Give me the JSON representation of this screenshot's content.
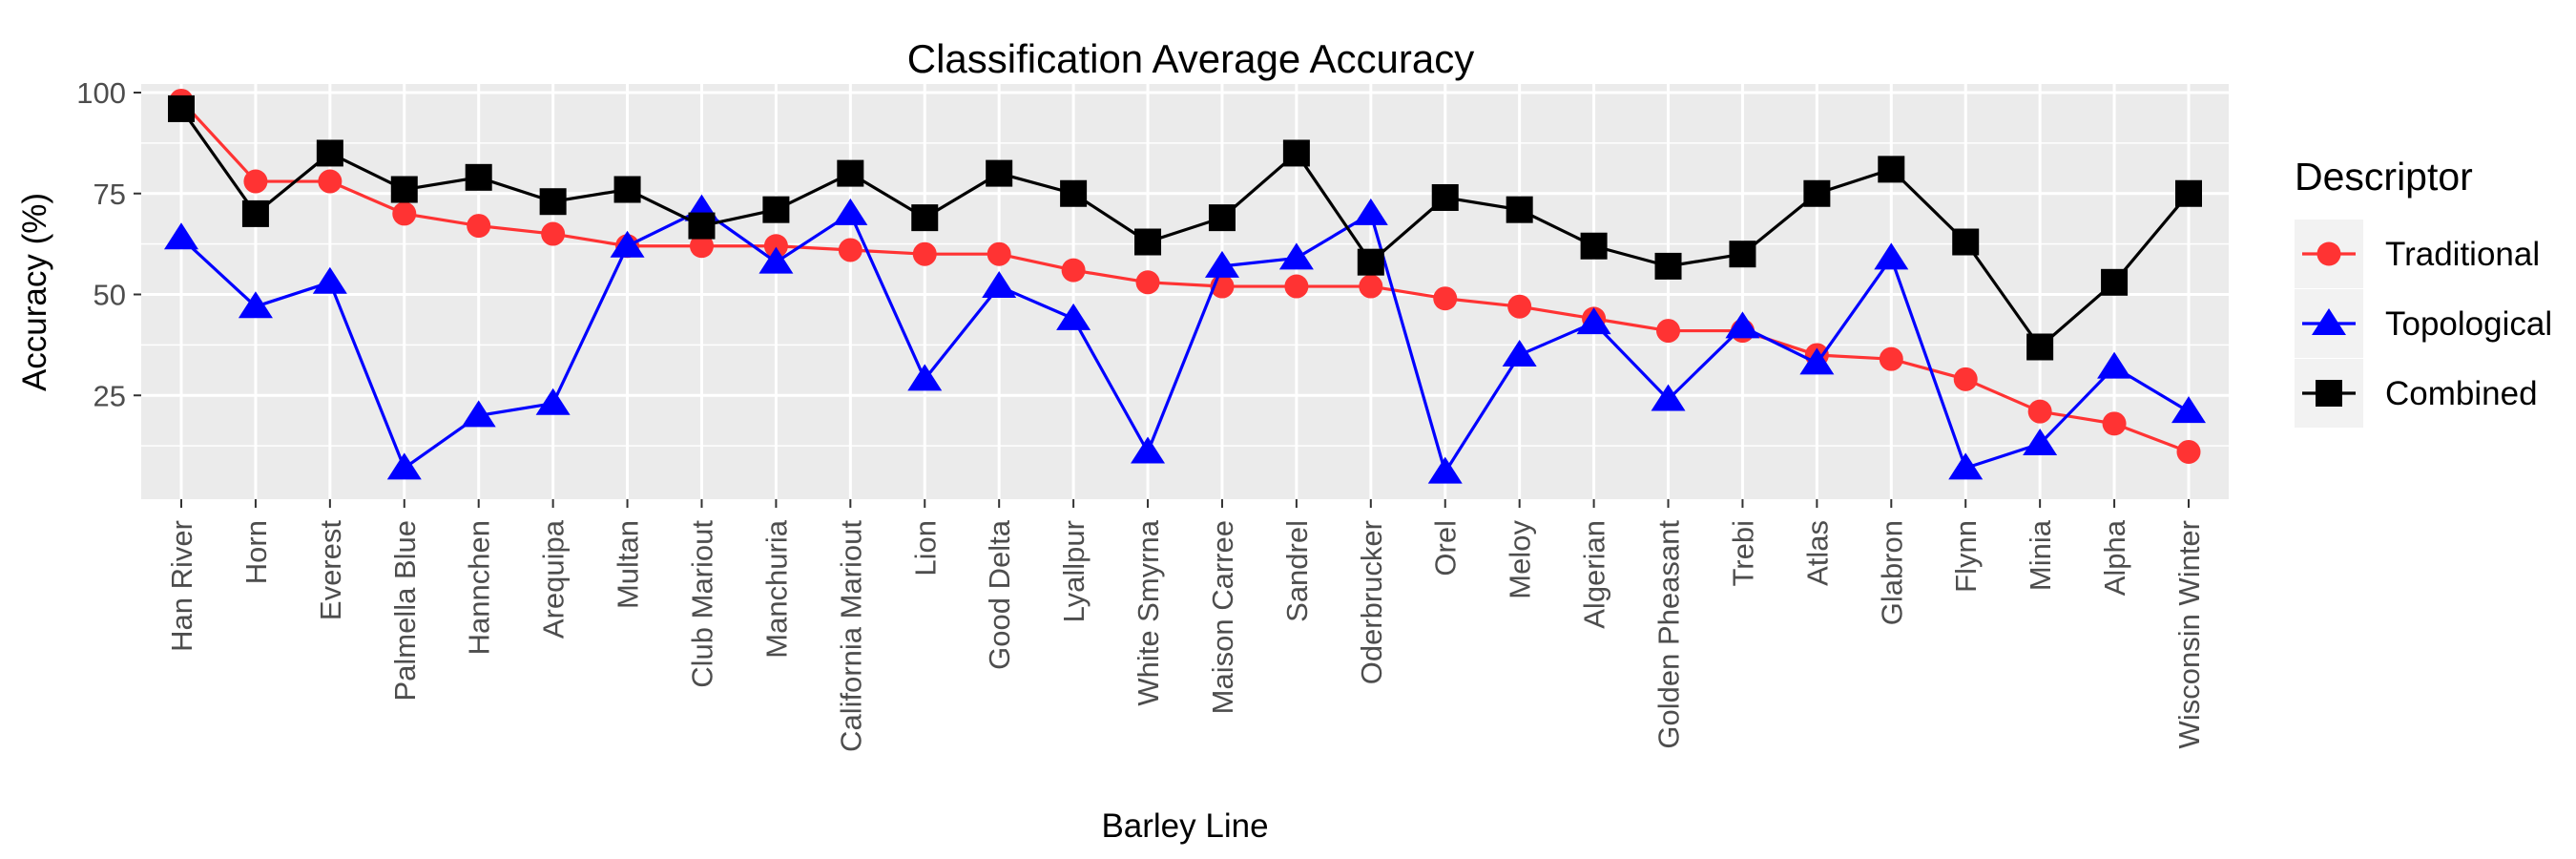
{
  "chart_data": {
    "type": "line",
    "title": "Classification Average Accuracy",
    "xlabel": "Barley Line",
    "ylabel": "Accuracy (%)",
    "ylim": [
      0,
      100
    ],
    "yticks": [
      25,
      50,
      75,
      100
    ],
    "grid": true,
    "legend_position": "right",
    "legend_title": "Descriptor",
    "categories": [
      "Han River",
      "Horn",
      "Everest",
      "Palmella Blue",
      "Hannchen",
      "Arequipa",
      "Multan",
      "Club Mariout",
      "Manchuria",
      "California Mariout",
      "Lion",
      "Good Delta",
      "Lyallpur",
      "White Smyrna",
      "Maison Carree",
      "Sandrel",
      "Oderbrucker",
      "Orel",
      "Meloy",
      "Algerian",
      "Golden Pheasant",
      "Trebi",
      "Atlas",
      "Glabron",
      "Flynn",
      "Minia",
      "Alpha",
      "Wisconsin Winter"
    ],
    "series": [
      {
        "name": "Traditional",
        "color": "#ff3333",
        "marker": "circle",
        "values": [
          98,
          78,
          78,
          70,
          67,
          65,
          62,
          62,
          62,
          61,
          60,
          60,
          56,
          53,
          52,
          52,
          52,
          49,
          47,
          44,
          41,
          41,
          35,
          34,
          29,
          21,
          18,
          11
        ]
      },
      {
        "name": "Topological",
        "color": "#0000ff",
        "marker": "triangle",
        "values": [
          64,
          47,
          53,
          7,
          20,
          23,
          62,
          71,
          58,
          70,
          29,
          52,
          44,
          11,
          57,
          59,
          70,
          6,
          35,
          43,
          24,
          42,
          33,
          59,
          7,
          13,
          32,
          21
        ]
      },
      {
        "name": "Combined",
        "color": "#000000",
        "marker": "square",
        "values": [
          96,
          70,
          85,
          76,
          79,
          73,
          76,
          67,
          71,
          80,
          69,
          80,
          75,
          63,
          69,
          85,
          58,
          74,
          71,
          62,
          57,
          60,
          75,
          81,
          63,
          37,
          53,
          75
        ]
      }
    ]
  }
}
